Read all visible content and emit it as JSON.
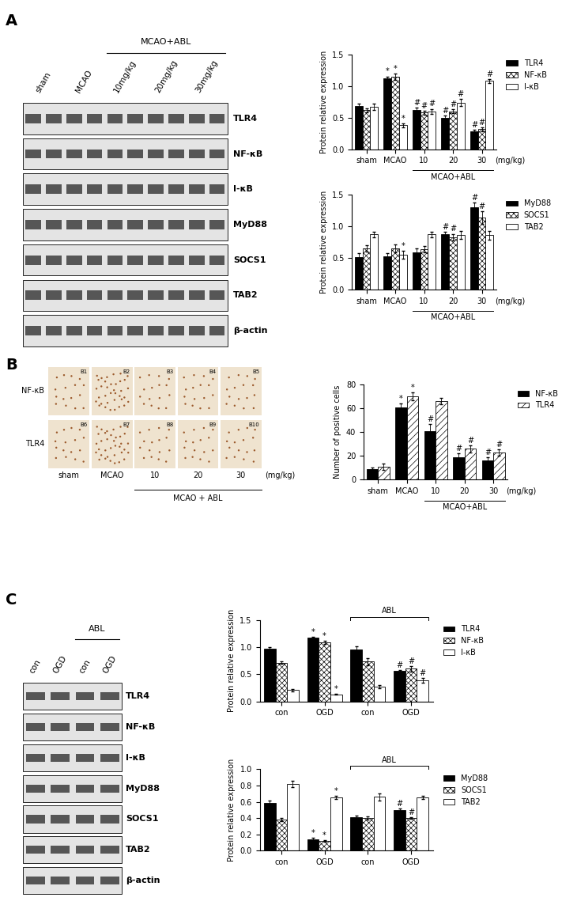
{
  "chart_data": [
    {
      "type": "bar",
      "ylabel": "Protein relative expression",
      "xlabel": "(mg/kg)",
      "categories": [
        "sham",
        "MCAO",
        "10",
        "20",
        "30"
      ],
      "group": {
        "label": "MCAO+ABL",
        "span": [
          2,
          4
        ]
      },
      "ylim": [
        0,
        1.5
      ],
      "yticks": [
        {
          "value": 0,
          "label": "0.0"
        },
        0.5,
        {
          "value": 1.0,
          "label": "1.0"
        },
        1.5
      ],
      "legend": "upper left",
      "series": [
        {
          "name": "TLR4",
          "color": "#000000",
          "values": [
            0.68,
            1.12,
            0.62,
            0.5,
            0.29
          ],
          "errors": [
            0.04,
            0.03,
            0.04,
            0.03,
            0.02
          ],
          "marks": [
            null,
            "*",
            "#",
            "#",
            "#"
          ]
        },
        {
          "name": "NF-κB",
          "color": "#ffffff",
          "values": [
            0.62,
            1.14,
            0.58,
            0.6,
            0.32
          ],
          "errors": [
            0.03,
            0.05,
            0.03,
            0.03,
            0.03
          ],
          "marks": [
            null,
            "*",
            "#",
            "#",
            "#"
          ]
        },
        {
          "name": "I-κB",
          "color": "#ffffff",
          "values": [
            0.67,
            0.38,
            0.6,
            0.74,
            1.08
          ],
          "errors": [
            0.05,
            0.03,
            0.04,
            0.05,
            0.03
          ],
          "marks": [
            null,
            "*",
            "#",
            "#",
            "#"
          ]
        }
      ]
    },
    {
      "type": "bar",
      "ylabel": "Protein relative expression",
      "xlabel": "(mg/kg)",
      "categories": [
        "sham",
        "MCAO",
        "10",
        "20",
        "30"
      ],
      "group": {
        "label": "MCAO+ABL",
        "span": [
          2,
          4
        ]
      },
      "ylim": [
        0,
        1.5
      ],
      "yticks": [
        {
          "value": 0,
          "label": "0.0"
        },
        0.5,
        {
          "value": 1.0,
          "label": "1.0"
        },
        1.5
      ],
      "legend": "upper left",
      "series": [
        {
          "name": "MyD88",
          "color": "#000000",
          "values": [
            0.51,
            0.52,
            0.59,
            0.88,
            1.3
          ],
          "errors": [
            0.06,
            0.05,
            0.06,
            0.03,
            0.07
          ],
          "marks": [
            null,
            null,
            null,
            "#",
            "#"
          ]
        },
        {
          "name": "SOCS1",
          "color": "#ffffff",
          "values": [
            0.65,
            0.65,
            0.64,
            0.83,
            1.14
          ],
          "errors": [
            0.05,
            0.06,
            0.05,
            0.05,
            0.1
          ],
          "marks": [
            null,
            null,
            null,
            "#",
            "#"
          ]
        },
        {
          "name": "TAB2",
          "color": "#ffffff",
          "values": [
            0.87,
            0.55,
            0.87,
            0.86,
            0.86
          ],
          "errors": [
            0.04,
            0.06,
            0.04,
            0.06,
            0.07
          ],
          "marks": [
            null,
            "*",
            null,
            null,
            null
          ]
        }
      ]
    },
    {
      "type": "bar",
      "ylabel": "Number of positive cells",
      "xlabel": "(mg/kg)",
      "categories": [
        "sham",
        "MCAO",
        "10",
        "20",
        "30"
      ],
      "group": {
        "label": "MCAO+ABL",
        "span": [
          2,
          4
        ]
      },
      "ylim": [
        0,
        80
      ],
      "yticks": [
        0,
        20,
        40,
        60,
        80
      ],
      "legend": "upper left",
      "series": [
        {
          "name": "NF-κB",
          "color": "#000000",
          "values": [
            9,
            61,
            41,
            19,
            16
          ],
          "errors": [
            1.0,
            3.0,
            6.0,
            3.0,
            3.0
          ],
          "marks": [
            null,
            "*",
            "#",
            "#",
            "#"
          ]
        },
        {
          "name": "TLR4",
          "color": "#ffffff",
          "values": [
            11,
            70,
            66,
            26,
            23
          ],
          "errors": [
            2.5,
            3.5,
            2.5,
            3.0,
            2.5
          ],
          "marks": [
            null,
            "*",
            null,
            "#",
            "#"
          ]
        }
      ]
    },
    {
      "type": "bar",
      "ylabel": "Protein relative expression",
      "categories": [
        "con",
        "OGD",
        "con",
        "OGD"
      ],
      "group": {
        "label": "ABL",
        "span": [
          2,
          3
        ]
      },
      "ylim": [
        0,
        1.5
      ],
      "yticks": [
        {
          "value": 0,
          "label": "0.0"
        },
        0.5,
        {
          "value": 1.0,
          "label": "1.0"
        },
        1.5
      ],
      "legend": "upper left",
      "series": [
        {
          "name": "TLR4",
          "color": "#000000",
          "values": [
            0.97,
            1.17,
            0.95,
            0.56
          ],
          "errors": [
            0.03,
            0.02,
            0.06,
            0.02
          ],
          "marks": [
            null,
            "*",
            null,
            "#"
          ]
        },
        {
          "name": "NF-κB",
          "color": "#ffffff",
          "values": [
            0.71,
            1.09,
            0.73,
            0.6
          ],
          "errors": [
            0.02,
            0.03,
            0.06,
            0.05
          ],
          "marks": [
            null,
            "*",
            null,
            "#"
          ]
        },
        {
          "name": "I-κB",
          "color": "#ffffff",
          "values": [
            0.21,
            0.13,
            0.27,
            0.39
          ],
          "errors": [
            0.02,
            0.01,
            0.03,
            0.04
          ],
          "marks": [
            null,
            "*",
            null,
            "#"
          ]
        }
      ]
    },
    {
      "type": "bar",
      "ylabel": "Protein relative expression",
      "categories": [
        "con",
        "OGD",
        "con",
        "OGD"
      ],
      "group": {
        "label": "ABL",
        "span": [
          2,
          3
        ]
      },
      "ylim": [
        0,
        1.0
      ],
      "yticks": [
        {
          "value": 0,
          "label": "0.0"
        },
        0.2,
        0.4,
        0.6,
        0.8,
        {
          "value": 1.0,
          "label": "1.0"
        }
      ],
      "legend": "upper left",
      "series": [
        {
          "name": "MyD88",
          "color": "#000000",
          "values": [
            0.59,
            0.14,
            0.41,
            0.5
          ],
          "errors": [
            0.03,
            0.02,
            0.02,
            0.02
          ],
          "marks": [
            null,
            "*",
            null,
            "#"
          ]
        },
        {
          "name": "SOCS1",
          "color": "#ffffff",
          "values": [
            0.38,
            0.12,
            0.4,
            0.4
          ],
          "errors": [
            0.02,
            0.01,
            0.02,
            0.01
          ],
          "marks": [
            null,
            "*",
            null,
            "#"
          ]
        },
        {
          "name": "TAB2",
          "color": "#ffffff",
          "values": [
            0.82,
            0.65,
            0.66,
            0.65
          ],
          "errors": [
            0.04,
            0.02,
            0.04,
            0.02
          ],
          "marks": [
            null,
            "*",
            null,
            null
          ]
        }
      ]
    }
  ],
  "panels": {
    "A": {
      "label": "A",
      "blot": {
        "lanes": [
          "sham",
          "MCAO",
          "10mg/kg",
          "20mg/kg",
          "30mg/kg"
        ],
        "group": {
          "label": "MCAO+ABL",
          "span": [
            2,
            4
          ]
        },
        "rows": [
          "TLR4",
          "NF-κB",
          "I-κB",
          "MyD88",
          "SOCS1",
          "TAB2",
          "β-actin"
        ]
      }
    },
    "B": {
      "label": "B",
      "images": {
        "rows": [
          "NF-κB",
          "TLR4"
        ],
        "tags": [
          "B1",
          "B2",
          "B3",
          "B4",
          "B5",
          "B6",
          "B7",
          "B8",
          "B9",
          "B10"
        ],
        "columns": [
          "sham",
          "MCAO",
          "10",
          "20",
          "30"
        ],
        "unit": "(mg/kg)",
        "group": {
          "label": "MCAO + ABL",
          "span": [
            2,
            4
          ]
        }
      }
    },
    "C": {
      "label": "C",
      "blot": {
        "lanes": [
          "con",
          "OGD",
          "con",
          "OGD"
        ],
        "group": {
          "label": "ABL",
          "span": [
            2,
            3
          ]
        },
        "rows": [
          "TLR4",
          "NF-κB",
          "I-κB",
          "MyD88",
          "SOCS1",
          "TAB2",
          "β-actin"
        ]
      }
    }
  }
}
